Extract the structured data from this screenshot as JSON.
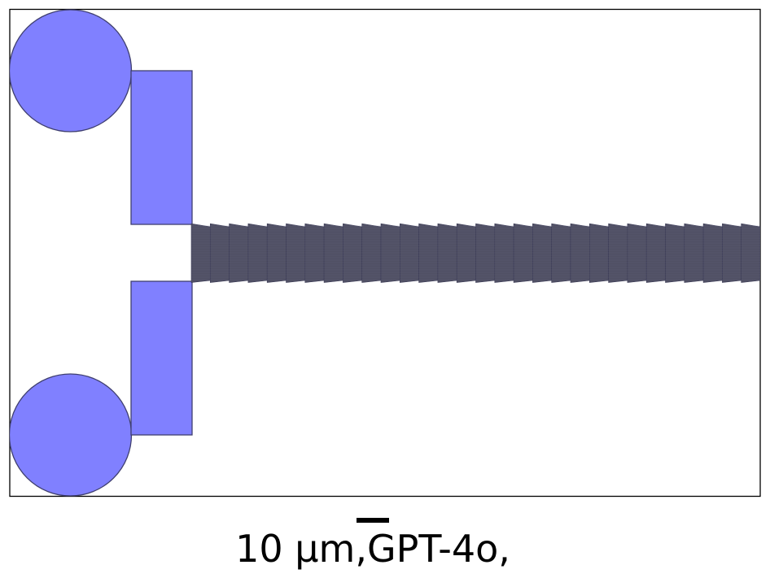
{
  "caption": {
    "text": "10 μm,GPT-4o,"
  },
  "colors": {
    "pad_fill": "#8080ff",
    "pad_stroke": "#3f3f6f",
    "channel_fill": "#505064",
    "frame": "#000000",
    "scale_bar": "#000000",
    "background": "#ffffff"
  }
}
